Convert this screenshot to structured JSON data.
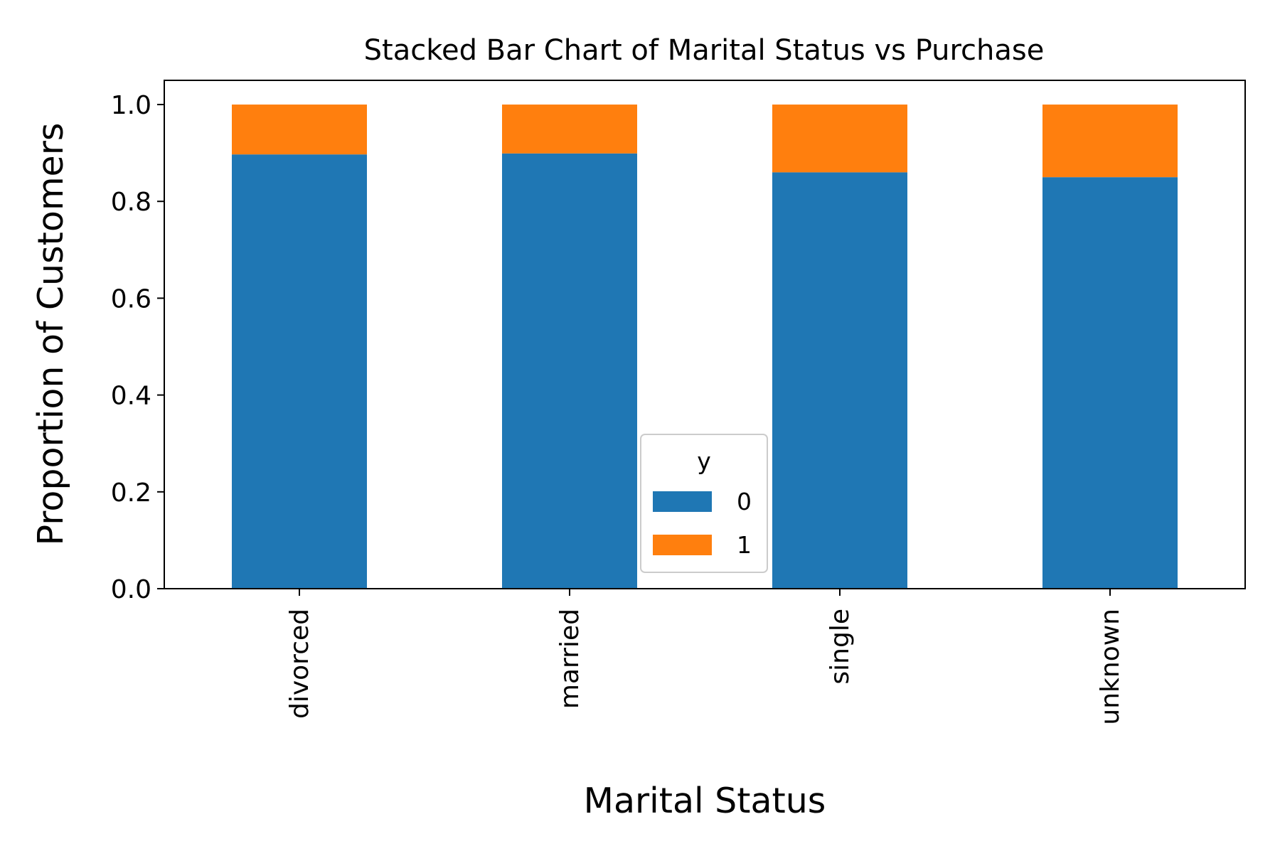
{
  "chart_data": {
    "type": "bar",
    "stacked": true,
    "title": "Stacked Bar Chart of Marital Status vs Purchase",
    "xlabel": "Marital Status",
    "ylabel": "Proportion of Customers",
    "categories": [
      "divorced",
      "married",
      "single",
      "unknown"
    ],
    "series": [
      {
        "name": "0",
        "values": [
          0.897,
          0.899,
          0.86,
          0.85
        ],
        "color": "#1f77b4"
      },
      {
        "name": "1",
        "values": [
          0.103,
          0.101,
          0.14,
          0.15
        ],
        "color": "#ff7f0e"
      }
    ],
    "ylim": [
      0,
      1.05
    ],
    "yticks": [
      0.0,
      0.2,
      0.4,
      0.6,
      0.8,
      1.0
    ],
    "ytick_labels": [
      "0.0",
      "0.2",
      "0.4",
      "0.6",
      "0.8",
      "1.0"
    ],
    "xtick_rotation": "vertical",
    "legend": {
      "title": "y",
      "labels": [
        "0",
        "1"
      ],
      "placement": "lower-center"
    },
    "grid": false
  }
}
